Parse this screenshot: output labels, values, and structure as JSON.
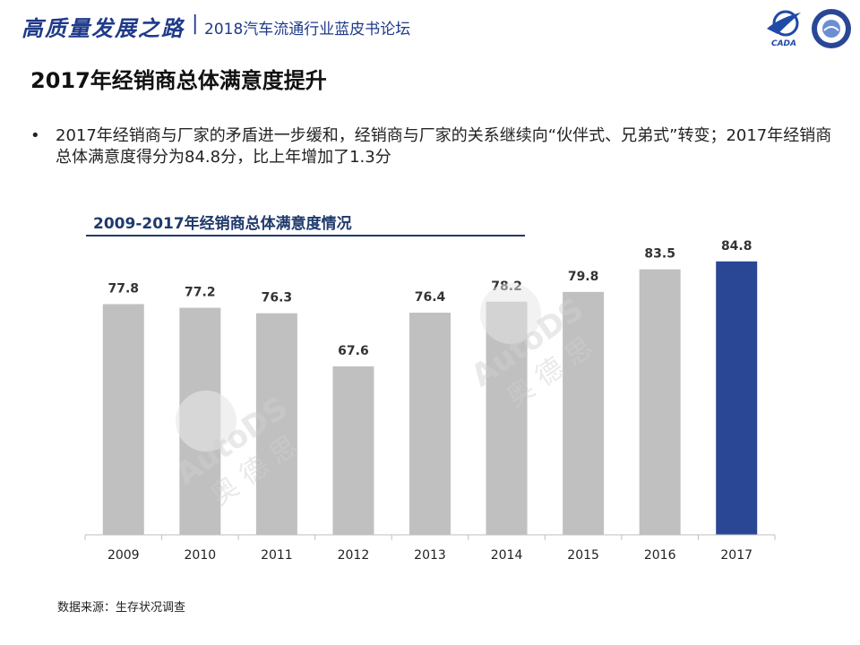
{
  "header": {
    "brand": "高质量发展之路",
    "separator": "|",
    "forum": "2018汽车流通行业蓝皮书论坛",
    "logo_left_text": "CADA"
  },
  "page_title": "2017年经销商总体满意度提升",
  "bullet": {
    "symbol": "•",
    "text": "2017年经销商与厂家的矛盾进一步缓和，经销商与厂家的关系继续向“伙伴式、兄弟式”转变；2017年经销商总体满意度得分为84.8分，比上年增加了1.3分"
  },
  "chart_subtitle": "2009-2017年经销商总体满意度情况",
  "chart_data": {
    "type": "bar",
    "title": "2009-2017年经销商总体满意度情况",
    "categories": [
      "2009",
      "2010",
      "2011",
      "2012",
      "2013",
      "2014",
      "2015",
      "2016",
      "2017"
    ],
    "values": [
      77.8,
      77.2,
      76.3,
      67.6,
      76.4,
      78.2,
      79.8,
      83.5,
      84.8
    ],
    "value_labels": [
      "77.8",
      "77.2",
      "76.3",
      "67.6",
      "76.4",
      "78.2",
      "79.8",
      "83.5",
      "84.8"
    ],
    "ylim": [
      40,
      88
    ],
    "highlight_index": 8,
    "colors": {
      "bar": "#c0c0c0",
      "highlight": "#2a4796",
      "label": "#333333",
      "axis": "#bfbfbf"
    },
    "grid": false,
    "legend": "none"
  },
  "watermark": {
    "brand": "AutoDS",
    "name": "奥德思"
  },
  "source": "数据来源：生存状况调查"
}
